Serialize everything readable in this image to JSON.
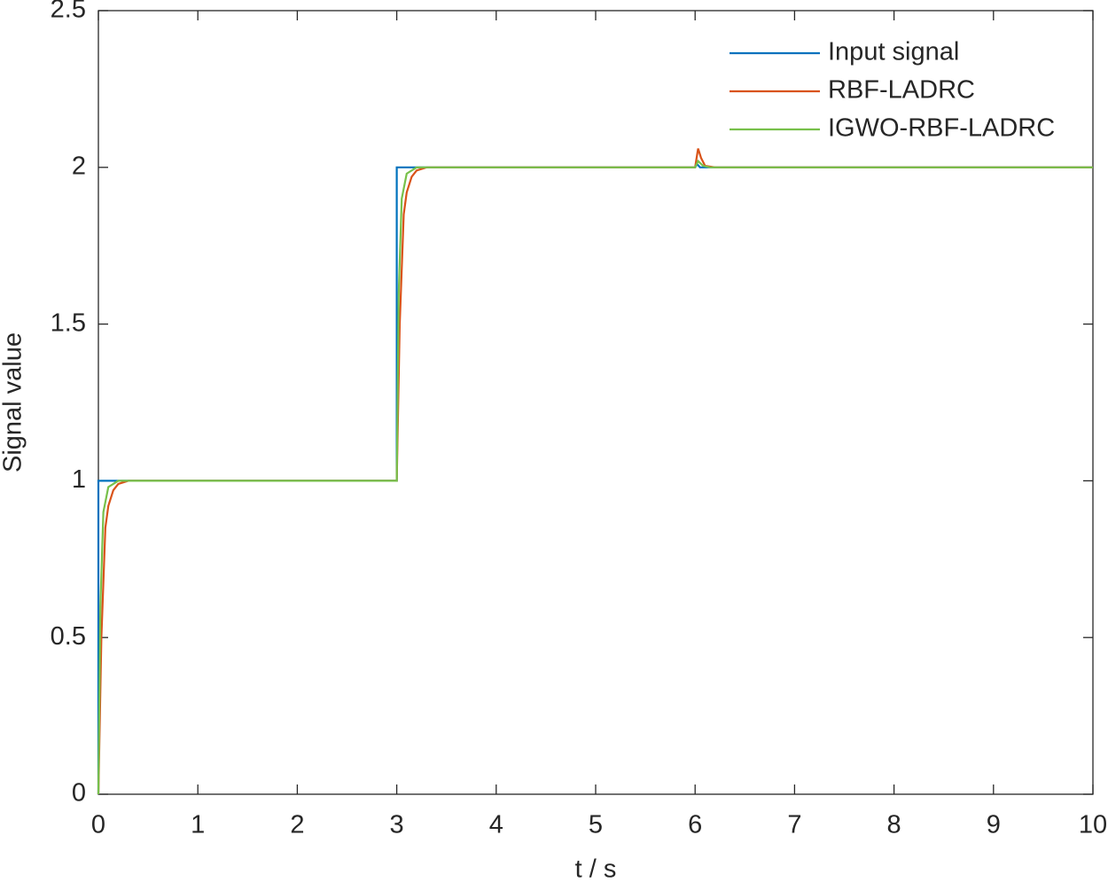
{
  "chart_data": {
    "type": "line",
    "xlabel": "t / s",
    "ylabel": "Signal value",
    "xlim": [
      0,
      10
    ],
    "xticks": [
      0,
      1,
      2,
      3,
      4,
      5,
      6,
      7,
      8,
      9,
      10
    ],
    "ylim": [
      0,
      2.5
    ],
    "yticks": [
      0,
      0.5,
      1,
      1.5,
      2,
      2.5
    ],
    "grid": false,
    "legend": "top-right",
    "series": [
      {
        "name": "Input signal",
        "color": "#0072bd",
        "x": [
          0,
          0,
          3,
          3,
          6,
          6.02,
          6.05,
          10
        ],
        "values": [
          0,
          1,
          1,
          2,
          2,
          2.01,
          2,
          2
        ]
      },
      {
        "name": "RBF-LADRC",
        "color": "#d95319",
        "x": [
          0,
          0.03,
          0.07,
          0.1,
          0.15,
          0.2,
          0.3,
          3,
          3.03,
          3.07,
          3.1,
          3.15,
          3.2,
          3.3,
          6,
          6.03,
          6.06,
          6.1,
          6.2,
          10
        ],
        "values": [
          0,
          0.5,
          0.85,
          0.92,
          0.97,
          0.99,
          1,
          1,
          1.5,
          1.85,
          1.92,
          1.97,
          1.99,
          2,
          2,
          2.06,
          2.03,
          2.005,
          2,
          2
        ]
      },
      {
        "name": "IGWO-RBF-LADRC",
        "color": "#77c04a",
        "x": [
          0,
          0.02,
          0.05,
          0.1,
          0.2,
          3,
          3.02,
          3.05,
          3.1,
          3.2,
          6,
          6.03,
          6.08,
          6.15,
          10
        ],
        "values": [
          0,
          0.6,
          0.9,
          0.98,
          1,
          1,
          1.6,
          1.9,
          1.98,
          2,
          2,
          2.02,
          2.005,
          2,
          2
        ]
      }
    ]
  }
}
